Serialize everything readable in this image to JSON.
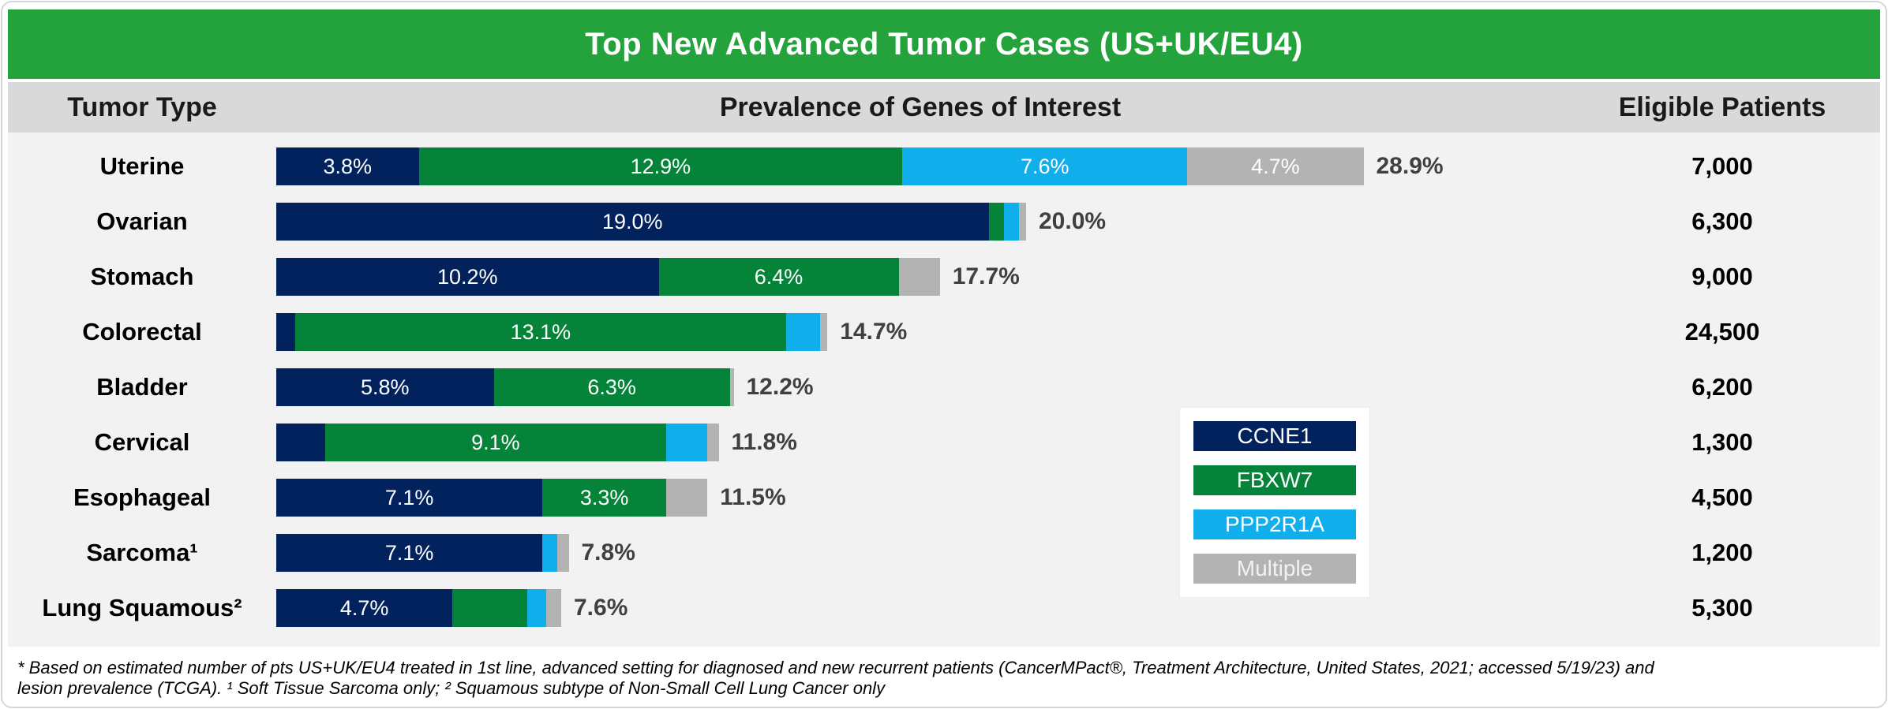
{
  "title": "Top New Advanced Tumor Cases (US+UK/EU4)",
  "header": {
    "tumor_type": "Tumor Type",
    "prevalence": "Prevalence of Genes of Interest",
    "eligible": "Eligible Patients"
  },
  "colors": {
    "title_bar_green": "#24a23c",
    "ccne1_navy": "#02225e",
    "fbxw7_green": "#048339",
    "ppp2r1a_cyan": "#10aeea",
    "multiple_gray": "#b3b3b3",
    "header_bg": "#d9d9d9",
    "body_bg": "#f2f2f2",
    "total_label_text": "#404040"
  },
  "legend": {
    "items": [
      {
        "key": "ccne1",
        "label": "CCNE1"
      },
      {
        "key": "fbxw7",
        "label": "FBXW7"
      },
      {
        "key": "ppp2r1a",
        "label": "PPP2R1A"
      },
      {
        "key": "multiple",
        "label": "Multiple"
      }
    ]
  },
  "chart_data": {
    "type": "bar",
    "orientation": "horizontal",
    "stacked": true,
    "unit": "percent",
    "series_names": [
      "CCNE1",
      "FBXW7",
      "PPP2R1A",
      "Multiple"
    ],
    "xlim": [
      0,
      30
    ],
    "grid": false,
    "legend_position": "right-middle",
    "rows": [
      {
        "tumor": "Uterine",
        "patients": "7,000",
        "total_label": "28.9%",
        "segments": [
          {
            "gene": "CCNE1",
            "value": 3.8,
            "label": "3.8%"
          },
          {
            "gene": "FBXW7",
            "value": 12.9,
            "label": "12.9%"
          },
          {
            "gene": "PPP2R1A",
            "value": 7.6,
            "label": "7.6%"
          },
          {
            "gene": "Multiple",
            "value": 4.7,
            "label": "4.7%"
          }
        ]
      },
      {
        "tumor": "Ovarian",
        "patients": "6,300",
        "total_label": "20.0%",
        "segments": [
          {
            "gene": "CCNE1",
            "value": 19.0,
            "label": "19.0%"
          },
          {
            "gene": "FBXW7",
            "value": 0.4,
            "label": ""
          },
          {
            "gene": "PPP2R1A",
            "value": 0.4,
            "label": ""
          },
          {
            "gene": "Multiple",
            "value": 0.2,
            "label": ""
          }
        ]
      },
      {
        "tumor": "Stomach",
        "patients": "9,000",
        "total_label": "17.7%",
        "segments": [
          {
            "gene": "CCNE1",
            "value": 10.2,
            "label": "10.2%"
          },
          {
            "gene": "FBXW7",
            "value": 6.4,
            "label": "6.4%"
          },
          {
            "gene": "PPP2R1A",
            "value": 0,
            "label": ""
          },
          {
            "gene": "Multiple",
            "value": 1.1,
            "label": ""
          }
        ]
      },
      {
        "tumor": "Colorectal",
        "patients": "24,500",
        "total_label": "14.7%",
        "segments": [
          {
            "gene": "CCNE1",
            "value": 0.5,
            "label": ""
          },
          {
            "gene": "FBXW7",
            "value": 13.1,
            "label": "13.1%"
          },
          {
            "gene": "PPP2R1A",
            "value": 0.9,
            "label": ""
          },
          {
            "gene": "Multiple",
            "value": 0.2,
            "label": ""
          }
        ]
      },
      {
        "tumor": "Bladder",
        "patients": "6,200",
        "total_label": "12.2%",
        "segments": [
          {
            "gene": "CCNE1",
            "value": 5.8,
            "label": "5.8%"
          },
          {
            "gene": "FBXW7",
            "value": 6.3,
            "label": "6.3%"
          },
          {
            "gene": "PPP2R1A",
            "value": 0,
            "label": ""
          },
          {
            "gene": "Multiple",
            "value": 0.1,
            "label": ""
          }
        ]
      },
      {
        "tumor": "Cervical",
        "patients": "1,300",
        "total_label": "11.8%",
        "segments": [
          {
            "gene": "CCNE1",
            "value": 1.3,
            "label": ""
          },
          {
            "gene": "FBXW7",
            "value": 9.1,
            "label": "9.1%"
          },
          {
            "gene": "PPP2R1A",
            "value": 1.1,
            "label": ""
          },
          {
            "gene": "Multiple",
            "value": 0.3,
            "label": ""
          }
        ]
      },
      {
        "tumor": "Esophageal",
        "patients": "4,500",
        "total_label": "11.5%",
        "segments": [
          {
            "gene": "CCNE1",
            "value": 7.1,
            "label": "7.1%"
          },
          {
            "gene": "FBXW7",
            "value": 3.3,
            "label": "3.3%"
          },
          {
            "gene": "PPP2R1A",
            "value": 0,
            "label": ""
          },
          {
            "gene": "Multiple",
            "value": 1.1,
            "label": ""
          }
        ]
      },
      {
        "tumor": "Sarcoma¹",
        "patients": "1,200",
        "total_label": "7.8%",
        "segments": [
          {
            "gene": "CCNE1",
            "value": 7.1,
            "label": "7.1%"
          },
          {
            "gene": "FBXW7",
            "value": 0,
            "label": ""
          },
          {
            "gene": "PPP2R1A",
            "value": 0.4,
            "label": ""
          },
          {
            "gene": "Multiple",
            "value": 0.3,
            "label": ""
          }
        ]
      },
      {
        "tumor": "Lung Squamous²",
        "patients": "5,300",
        "total_label": "7.6%",
        "segments": [
          {
            "gene": "CCNE1",
            "value": 4.7,
            "label": "4.7%"
          },
          {
            "gene": "FBXW7",
            "value": 2.0,
            "label": ""
          },
          {
            "gene": "PPP2R1A",
            "value": 0.5,
            "label": ""
          },
          {
            "gene": "Multiple",
            "value": 0.4,
            "label": ""
          }
        ]
      }
    ]
  },
  "footnote": {
    "line1": "* Based on estimated number of pts US+UK/EU4 treated in 1st line, advanced setting for diagnosed and new recurrent patients (CancerMPact®, Treatment Architecture, United States, 2021; accessed 5/19/23) and",
    "line2": "lesion prevalence (TCGA). ¹ Soft Tissue Sarcoma only; ² Squamous subtype of Non-Small Cell Lung Cancer only"
  }
}
